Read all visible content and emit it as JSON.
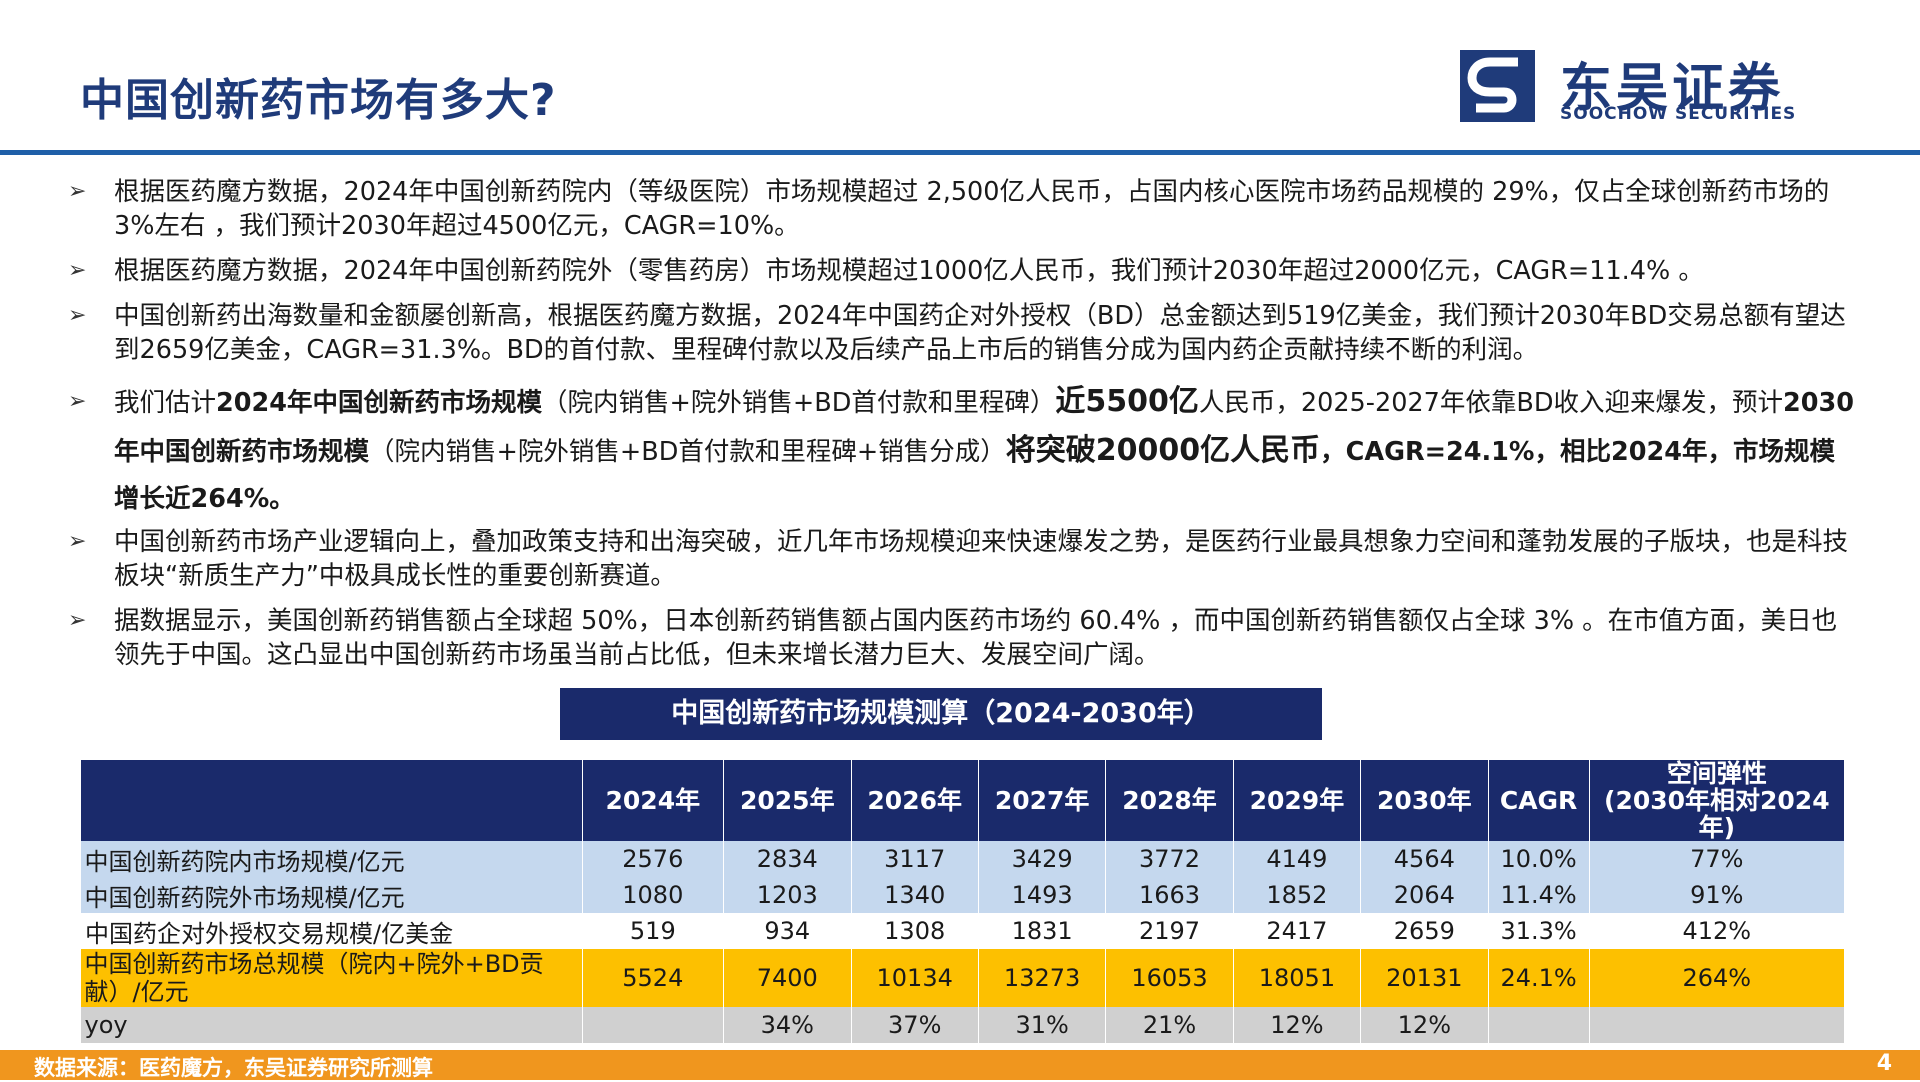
{
  "header": {
    "title": "中国创新药市场有多大?",
    "logo_cn": "东吴证券",
    "logo_en": "SOOCHOW SECURITIES"
  },
  "bullets": [
    "根据医药魔方数据，2024年中国创新药院内（等级医院）市场规模超过 2,500亿人民币，占国内核心医院市场药品规模的 29%，仅占全球创新药市场的 3%左右 ，我们预计2030年超过4500亿元，CAGR=10%。",
    "根据医药魔方数据，2024年中国创新药院外（零售药房）市场规模超过1000亿人民币，我们预计2030年超过2000亿元，CAGR=11.4% 。",
    "中国创新药出海数量和金额屡创新高，根据医药魔方数据，2024年中国药企对外授权（BD）总金额达到519亿美金，我们预计2030年BD交易总额有望达到2659亿美金，CAGR=31.3%。BD的首付款、里程碑付款以及后续产品上市后的销售分成为国内药企贡献持续不断的利润。",
    {
      "p1": "我们估计",
      "b1": "2024年中国创新药市场规模",
      "p2": "（院内销售+院外销售+BD首付款和里程碑）",
      "b2": "近5500亿",
      "p3": "人民币，2025-2027年依靠BD收入迎来爆发，预计",
      "b3": "2030年中国创新药市场规模",
      "p4": "（院内销售+院外销售+BD首付款和里程碑+销售分成）",
      "b4": "将突破20000亿人民币",
      "b5": "，CAGR=24.1%，相比2024年，市场规模增长近264%。"
    },
    "中国创新药市场产业逻辑向上，叠加政策支持和出海突破，近几年市场规模迎来快速爆发之势，是医药行业最具想象力空间和蓬勃发展的子版块，也是科技板块“新质生产力”中极具成长性的重要创新赛道。",
    "据数据显示，美国创新药销售额占全球超 50%，日本创新药销售额占国内医药市场约 60.4% ，而中国创新药销售额仅占全球 3% 。在市值方面，美日也领先于中国。这凸显出中国创新药市场虽当前占比低，但未来增长潜力巨大、发展空间广阔。"
  ],
  "table": {
    "caption": "中国创新药市场规模测算（2024-2030年）",
    "headers": [
      "",
      "2024年",
      "2025年",
      "2026年",
      "2027年",
      "2028年",
      "2029年",
      "2030年",
      "CAGR",
      "空间弹性",
      "(2030年相对2024年)"
    ],
    "rows": [
      [
        "中国创新药院内市场规模/亿元",
        "2576",
        "2834",
        "3117",
        "3429",
        "3772",
        "4149",
        "4564",
        "10.0%",
        "77%"
      ],
      [
        "中国创新药院外市场规模/亿元",
        "1080",
        "1203",
        "1340",
        "1493",
        "1663",
        "1852",
        "2064",
        "11.4%",
        "91%"
      ],
      [
        "中国药企对外授权交易规模/亿美金",
        "519",
        "934",
        "1308",
        "1831",
        "2197",
        "2417",
        "2659",
        "31.3%",
        "412%"
      ],
      [
        "中国创新药市场总规模（院内+院外+BD贡献）/亿元",
        "5524",
        "7400",
        "10134",
        "13273",
        "16053",
        "18051",
        "20131",
        "24.1%",
        "264%"
      ],
      [
        "yoy",
        "",
        "34%",
        "37%",
        "31%",
        "21%",
        "12%",
        "12%",
        "",
        ""
      ]
    ]
  },
  "footer": {
    "source": "数据来源：医药魔方，东吴证券研究所测算",
    "page": "4"
  },
  "colors": {
    "navy": "#1a2a6b",
    "title_blue": "#1f3b7a",
    "rule_blue": "#1f5fa8",
    "row_blue": "#c5d8ee",
    "row_gold": "#fdc000",
    "row_gray": "#d0d0d0",
    "footer_orange": "#f0961e"
  }
}
